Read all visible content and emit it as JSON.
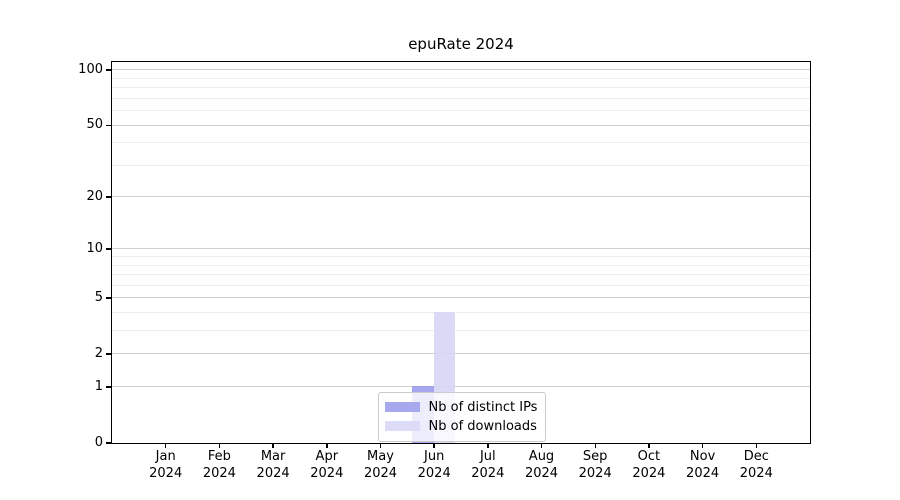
{
  "chart_data": {
    "type": "bar",
    "title": "epuRate 2024",
    "xlabel": "",
    "ylabel": "",
    "yscale": "log1p",
    "ylim": [
      0,
      110
    ],
    "grid": true,
    "legend_position": "lower center inside",
    "categories": [
      "Jan 2024",
      "Feb 2024",
      "Mar 2024",
      "Apr 2024",
      "May 2024",
      "Jun 2024",
      "Jul 2024",
      "Aug 2024",
      "Sep 2024",
      "Oct 2024",
      "Nov 2024",
      "Dec 2024"
    ],
    "yticks": [
      0,
      1,
      2,
      5,
      10,
      20,
      50,
      100
    ],
    "minor_yticks": [
      3,
      4,
      6,
      7,
      8,
      9,
      30,
      40,
      60,
      70,
      80,
      90
    ],
    "series": [
      {
        "name": "Nb of distinct IPs",
        "color": "#a8a8ee",
        "fill": "rgba(150,150,235,0.85)",
        "values": [
          0,
          0,
          0,
          0,
          0,
          1,
          0,
          0,
          0,
          0,
          0,
          0
        ]
      },
      {
        "name": "Nb of downloads",
        "color": "#dcdcf8",
        "fill": "rgba(214,214,246,0.9)",
        "values": [
          0,
          0,
          0,
          0,
          0,
          4,
          0,
          0,
          0,
          0,
          0,
          0
        ]
      }
    ]
  },
  "colors": {
    "major_grid": "#cfcfcf",
    "minor_grid": "#ededed",
    "spine": "#000000",
    "legend_border": "#cccccc"
  }
}
